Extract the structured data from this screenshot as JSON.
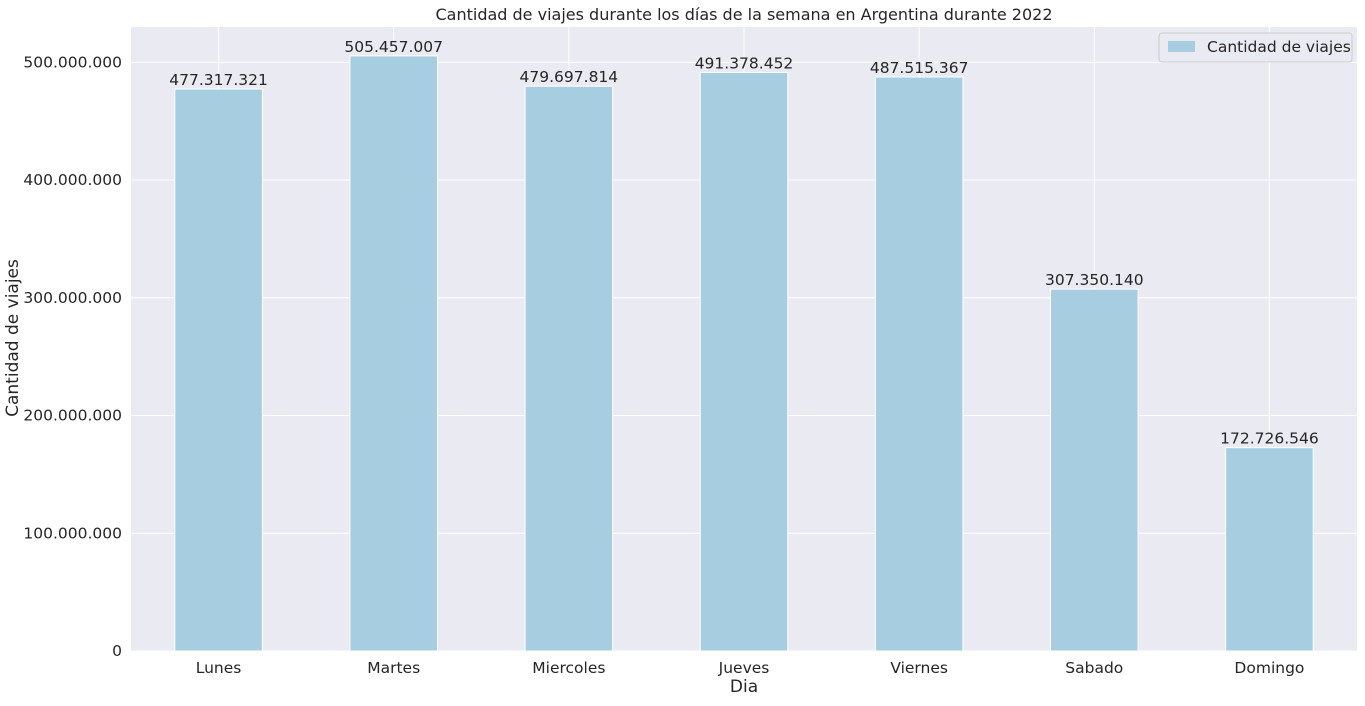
{
  "chart_data": {
    "type": "bar",
    "title": "Cantidad de viajes durante los días de la semana en Argentina durante 2022",
    "xlabel": "Dia",
    "ylabel": "Cantidad de viajes",
    "categories": [
      "Lunes",
      "Martes",
      "Miercoles",
      "Jueves",
      "Viernes",
      "Sabado",
      "Domingo"
    ],
    "series": [
      {
        "name": "Cantidad de viajes",
        "values": [
          477317321,
          505457007,
          479697814,
          491378452,
          487515367,
          307350140,
          172726546
        ],
        "data_labels": [
          "477.317.321",
          "505.457.007",
          "479.697.814",
          "491.378.452",
          "487.515.367",
          "307.350.140",
          "172.726.546"
        ]
      }
    ],
    "ylim": [
      0,
      530000000
    ],
    "yticks": [
      0,
      100000000,
      200000000,
      300000000,
      400000000,
      500000000
    ],
    "ytick_labels": [
      "0",
      "100.000.000",
      "200.000.000",
      "300.000.000",
      "400.000.000",
      "500.000.000"
    ],
    "grid": true,
    "legend_position": "top-right",
    "colors": {
      "bar": "#a6cee0",
      "plot_background": "#eaeaf2",
      "grid": "#ffffff",
      "text": "#262626"
    }
  }
}
